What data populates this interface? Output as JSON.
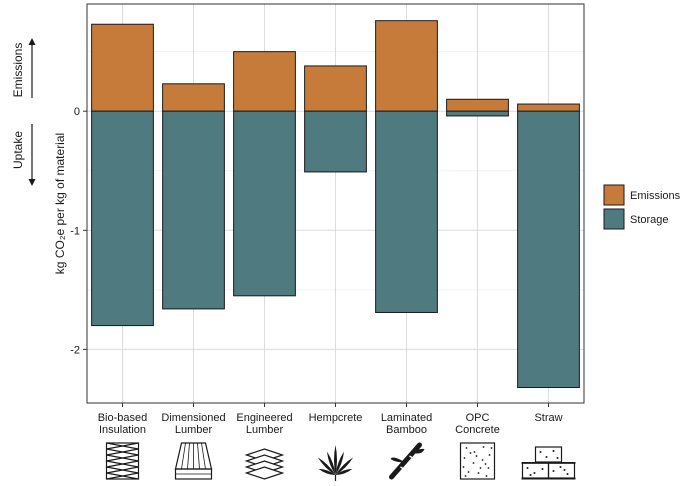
{
  "chart_data": {
    "type": "bar",
    "stacked": true,
    "categories": [
      "Bio-based Insulation",
      "Dimensioned Lumber",
      "Engineered Lumber",
      "Hempcrete",
      "Laminated Bamboo",
      "OPC Concrete",
      "Straw"
    ],
    "category_label_lines": [
      [
        "Bio-based",
        "Insulation"
      ],
      [
        "Dimensioned",
        "Lumber"
      ],
      [
        "Engineered",
        "Lumber"
      ],
      [
        "Hempcrete"
      ],
      [
        "Laminated",
        "Bamboo"
      ],
      [
        "OPC",
        "Concrete"
      ],
      [
        "Straw"
      ]
    ],
    "category_icons": [
      "insulation-icon",
      "lumber-icon",
      "engineered-lumber-icon",
      "hemp-leaf-icon",
      "bamboo-icon",
      "concrete-icon",
      "straw-bale-icon"
    ],
    "series": [
      {
        "name": "Emissions",
        "color": "#c67b3b",
        "values": [
          0.73,
          0.23,
          0.5,
          0.38,
          0.76,
          0.1,
          0.06
        ]
      },
      {
        "name": "Storage",
        "color": "#4e7a80",
        "values": [
          -1.8,
          -1.66,
          -1.55,
          -0.51,
          -1.69,
          -0.04,
          -2.32
        ]
      }
    ],
    "ylabel": "kg CO₂e per kg of material",
    "ylim": [
      -2.45,
      0.9
    ],
    "yticks": [
      0,
      -1,
      -2
    ],
    "ytick_labels": [
      "0",
      "-1",
      "-2"
    ],
    "grid": true,
    "legend_position": "right",
    "side_labels": {
      "up": "Emissions",
      "down": "Uptake"
    }
  }
}
